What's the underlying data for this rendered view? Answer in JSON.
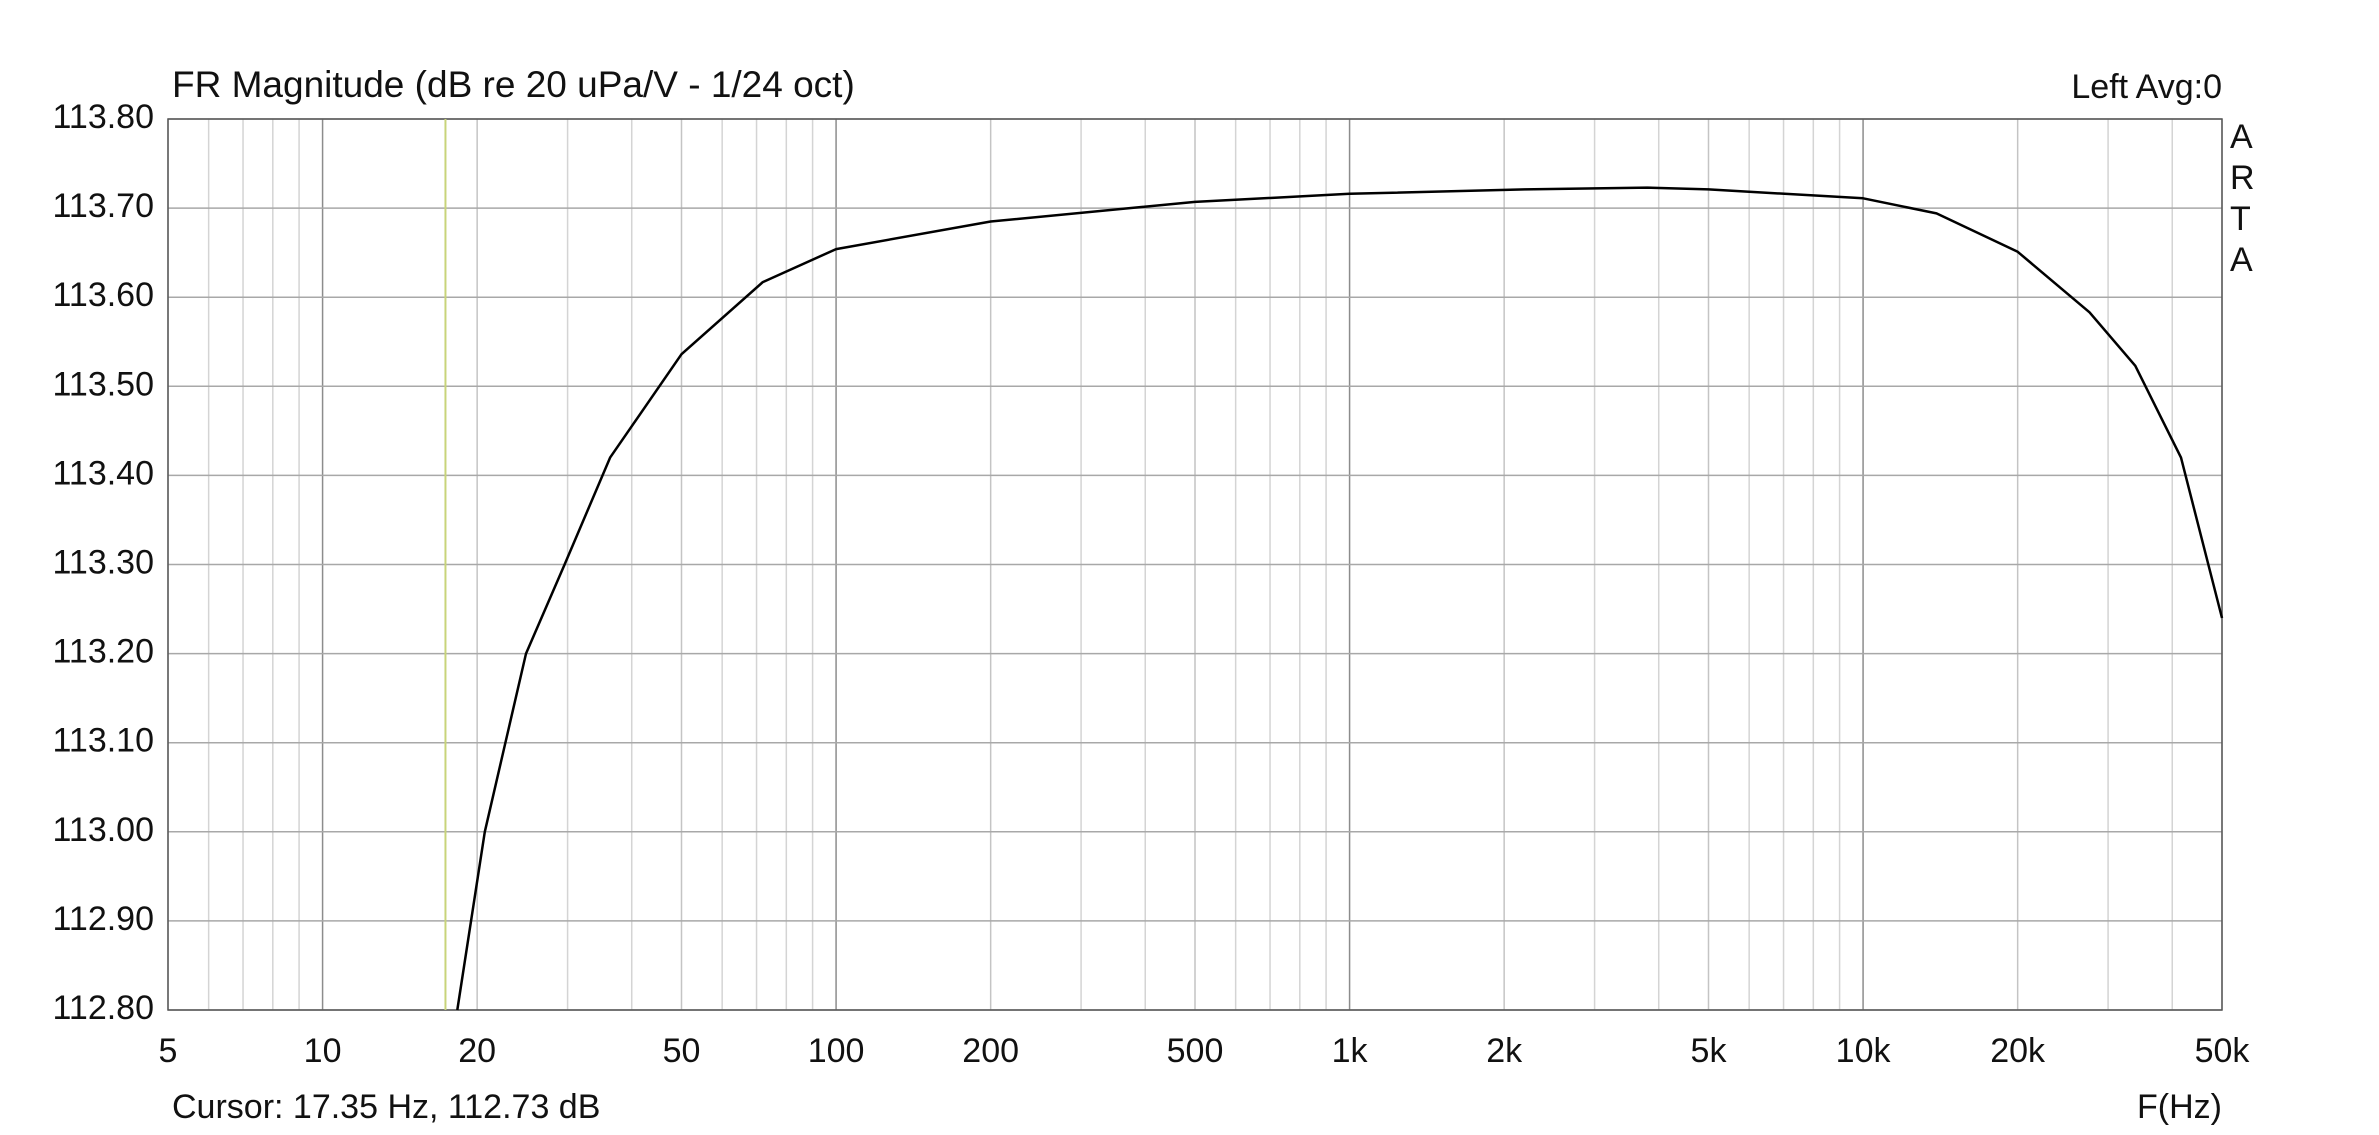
{
  "chart_data": {
    "type": "line",
    "title": "FR Magnitude (dB re 20 uPa/V - 1/24 oct)",
    "channel_label": "Left  Avg:0",
    "side_label": [
      "A",
      "R",
      "T",
      "A"
    ],
    "xlabel": "F(Hz)",
    "cursor": {
      "label": "Cursor: 17.35 Hz, 112.73 dB",
      "x": 17.35,
      "color": "#c8d47a"
    },
    "x_scale": "log",
    "xlim": [
      5,
      50000
    ],
    "xticks": [
      5,
      10,
      20,
      50,
      100,
      200,
      500,
      {
        "value": 1000,
        "label": "1k"
      },
      {
        "value": 2000,
        "label": "2k"
      },
      {
        "value": 5000,
        "label": "5k"
      },
      {
        "value": 10000,
        "label": "10k"
      },
      {
        "value": 20000,
        "label": "20k"
      },
      {
        "value": 50000,
        "label": "50k"
      }
    ],
    "minor_xticks": [
      6,
      7,
      8,
      9,
      30,
      40,
      60,
      70,
      80,
      90,
      300,
      400,
      600,
      700,
      800,
      900,
      3000,
      4000,
      6000,
      7000,
      8000,
      9000,
      30000,
      40000
    ],
    "ylim": [
      112.8,
      113.8
    ],
    "yticks": [
      {
        "value": 112.8,
        "label": "112.80"
      },
      {
        "value": 112.9,
        "label": "112.90"
      },
      {
        "value": 113.0,
        "label": "113.00"
      },
      {
        "value": 113.1,
        "label": "113.10"
      },
      {
        "value": 113.2,
        "label": "113.20"
      },
      {
        "value": 113.3,
        "label": "113.30"
      },
      {
        "value": 113.4,
        "label": "113.40"
      },
      {
        "value": 113.5,
        "label": "113.50"
      },
      {
        "value": 113.6,
        "label": "113.60"
      },
      {
        "value": 113.7,
        "label": "113.70"
      },
      {
        "value": 113.8,
        "label": "113.80"
      }
    ],
    "grid": true,
    "series": [
      {
        "name": "FR",
        "color": "#000000",
        "x": [
          18.3,
          20.7,
          24.9,
          29.6,
          36.3,
          50,
          72,
          100,
          200,
          500,
          1000,
          2200,
          3800,
          5000,
          10000,
          13900,
          20000,
          27600,
          33900,
          41600,
          50000
        ],
        "values": [
          112.8,
          113.0,
          113.2,
          113.3,
          113.42,
          113.536,
          113.617,
          113.654,
          113.685,
          113.707,
          113.716,
          113.721,
          113.723,
          113.721,
          113.711,
          113.694,
          113.651,
          113.583,
          113.523,
          113.42,
          113.24
        ]
      }
    ]
  }
}
